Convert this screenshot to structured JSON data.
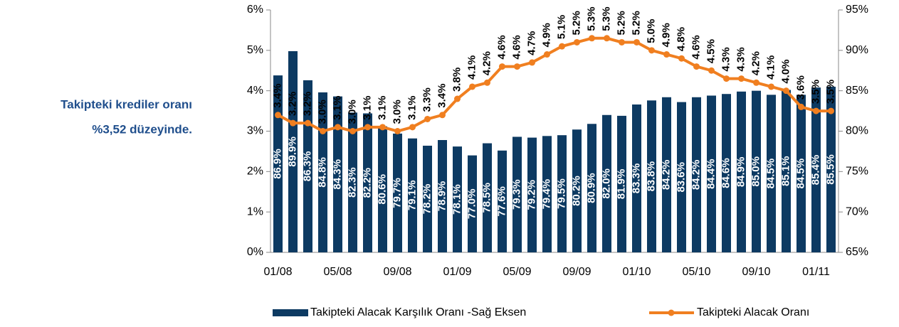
{
  "chart_data": {
    "type": "bar-line",
    "annotation": [
      "Takipteki krediler oranı",
      "%3,52 düzeyinde."
    ],
    "categories": [
      "01/08",
      null,
      null,
      null,
      "05/08",
      null,
      null,
      null,
      "09/08",
      null,
      null,
      null,
      "01/09",
      null,
      null,
      null,
      "05/09",
      null,
      null,
      null,
      "09/09",
      null,
      null,
      null,
      "01/10",
      null,
      null,
      null,
      "05/10",
      null,
      null,
      null,
      "09/10",
      null,
      null,
      null,
      "01/11",
      null
    ],
    "series": [
      {
        "name": "Takipteki Alacak Karşılık Oranı -Sağ Eksen",
        "color": "#0d3a62",
        "axis": "y2",
        "values": [
          86.9,
          89.9,
          86.3,
          84.8,
          84.3,
          82.3,
          82.2,
          80.6,
          79.7,
          79.1,
          78.2,
          78.9,
          78.1,
          77.0,
          78.5,
          77.6,
          79.3,
          79.2,
          79.4,
          79.5,
          80.2,
          80.9,
          82.0,
          81.9,
          83.3,
          83.8,
          84.2,
          83.6,
          84.2,
          84.4,
          84.6,
          84.9,
          85.0,
          84.5,
          85.1,
          84.5,
          85.4,
          85.5
        ],
        "value_labels": [
          "86.9%",
          "89.9%",
          "86.3%",
          "84.8%",
          "84.3%",
          "82.3%",
          "82.2%",
          "80.6%",
          "79.7%",
          "79.1%",
          "78.2%",
          "78.9%",
          "78.1%",
          "77.0%",
          "78.5%",
          "77.6%",
          "79.3%",
          "79.2%",
          "79.4%",
          "79.5%",
          "80.2%",
          "80.9%",
          "82.0%",
          "81.9%",
          "83.3%",
          "83.8%",
          "84.2%",
          "83.6%",
          "84.2%",
          "84.4%",
          "84.6%",
          "84.9%",
          "85.0%",
          "84.5%",
          "85.1%",
          "84.5%",
          "85.4%",
          "85.5%"
        ]
      },
      {
        "name": "Takipteki Alacak Oranı",
        "color": "#f07f20",
        "axis": "y",
        "values": [
          3.4,
          3.2,
          3.2,
          3.0,
          3.1,
          3.0,
          3.1,
          3.1,
          3.0,
          3.1,
          3.3,
          3.4,
          3.8,
          4.1,
          4.2,
          4.6,
          4.6,
          4.7,
          4.9,
          5.1,
          5.2,
          5.3,
          5.3,
          5.2,
          5.2,
          5.0,
          4.9,
          4.8,
          4.6,
          4.5,
          4.3,
          4.3,
          4.2,
          4.1,
          4.0,
          3.6,
          3.5,
          3.5
        ],
        "value_labels": [
          "3.4%",
          "3.2%",
          "3.2%",
          "3.0%",
          "3.1%",
          "3.0%",
          "3.1%",
          "3.1%",
          "3.0%",
          "3.1%",
          "3.3%",
          "3.4%",
          "3.8%",
          "4.1%",
          "4.2%",
          "4.6%",
          "4.6%",
          "4.7%",
          "4.9%",
          "5.1%",
          "5.2%",
          "5.3%",
          "5.3%",
          "5.2%",
          "5.2%",
          "5.0%",
          "4.9%",
          "4.8%",
          "4.6%",
          "4.5%",
          "4.3%",
          "4.3%",
          "4.2%",
          "4.1%",
          "4.0%",
          "3.6%",
          "3.5%",
          "3.5%"
        ]
      }
    ],
    "ylim": [
      0,
      6
    ],
    "yticks": [
      {
        "value": 0,
        "label": "0%"
      },
      {
        "value": 1,
        "label": "1%"
      },
      {
        "value": 2,
        "label": "2%"
      },
      {
        "value": 3,
        "label": "3%"
      },
      {
        "value": 4,
        "label": "4%"
      },
      {
        "value": 5,
        "label": "5%"
      },
      {
        "value": 6,
        "label": "6%"
      }
    ],
    "y2lim": [
      65,
      95
    ],
    "y2ticks": [
      {
        "value": 65,
        "label": "65%"
      },
      {
        "value": 70,
        "label": "70%"
      },
      {
        "value": 75,
        "label": "75%"
      },
      {
        "value": 80,
        "label": "80%"
      },
      {
        "value": 85,
        "label": "85%"
      },
      {
        "value": 90,
        "label": "90%"
      },
      {
        "value": 95,
        "label": "95%"
      }
    ],
    "legend": "bottom"
  }
}
